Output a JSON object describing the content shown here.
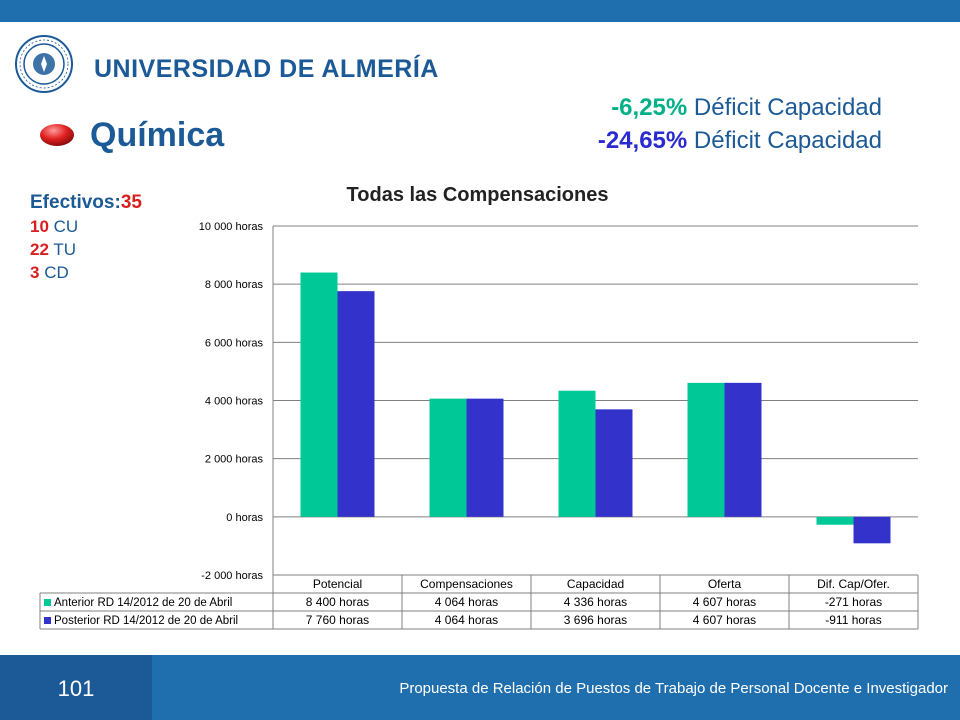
{
  "colors": {
    "series1": "#00c896",
    "series2": "#3333cc",
    "brand": "#1b5a96",
    "accent_red": "#d81f1f"
  },
  "header": {
    "university": "UNIVERSIDAD DE ALMERÍA",
    "logo_icon": "university-seal-icon"
  },
  "title": "Química",
  "bullet_icon": "red-oval-bullet-icon",
  "deficits": [
    {
      "pct": "-6,25%",
      "label": " Déficit Capacidad"
    },
    {
      "pct": "-24,65%",
      "label": " Déficit Capacidad"
    }
  ],
  "staff": {
    "head_label": "Efectivos:",
    "head_value": "35",
    "rows": [
      {
        "num": "10",
        "label": " CU"
      },
      {
        "num": "22",
        "label": " TU"
      },
      {
        "num": "3",
        "label": " CD"
      }
    ]
  },
  "chart_data": {
    "type": "bar",
    "title": "Todas las Compensaciones",
    "categories": [
      "Potencial",
      "Compensaciones",
      "Capacidad",
      "Oferta",
      "Dif. Cap/Ofer."
    ],
    "series": [
      {
        "name": "Anterior RD 14/2012 de 20 de Abril",
        "values": [
          8400,
          4064,
          4336,
          4607,
          -271
        ],
        "labels": [
          "8 400 horas",
          "4 064 horas",
          "4 336 horas",
          "4 607 horas",
          "-271 horas"
        ]
      },
      {
        "name": "Posterior RD 14/2012 de 20 de Abril",
        "values": [
          7760,
          4064,
          3696,
          4607,
          -911
        ],
        "labels": [
          "7 760 horas",
          "4 064 horas",
          "3 696 horas",
          "4 607 horas",
          "-911 horas"
        ]
      }
    ],
    "ylim": [
      -2000,
      10000
    ],
    "yticks": [
      10000,
      8000,
      6000,
      4000,
      2000,
      0,
      -2000
    ],
    "ytick_labels": [
      "10 000 horas",
      "8 000 horas",
      "6 000 horas",
      "4 000 horas",
      "2 000 horas",
      "0 horas",
      "-2 000 horas"
    ],
    "grid": true,
    "legend": "data-table"
  },
  "footer": {
    "slide_number": "101",
    "text": "Propuesta de Relación de Puestos de Trabajo de Personal Docente e Investigador"
  }
}
